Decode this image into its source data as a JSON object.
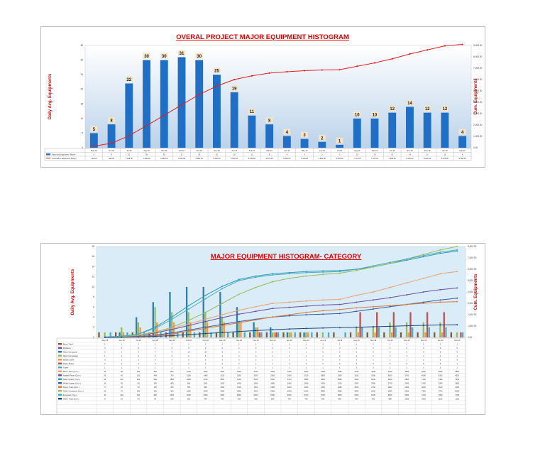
{
  "chart_data": [
    {
      "type": "bar",
      "title": "OVERAL PROJECT MAJOR EQUIPMENT HISTOGRAM",
      "ylabel": "Daily Avg. Equipments",
      "y2label": "Cum. Equipments",
      "ylim": [
        0,
        35
      ],
      "y2lim": [
        0,
        9000
      ],
      "y_ticks": [
        "0",
        "5",
        "10",
        "15",
        "20",
        "25",
        "30",
        "35"
      ],
      "y2_ticks": [
        "0.00",
        "1,000.00",
        "2,000.00",
        "3,000.00",
        "4,000.00",
        "5,000.00",
        "6,000.00",
        "7,000.00",
        "8,000.00",
        "9,000.00"
      ],
      "categories": [
        "May-18",
        "Jun-18",
        "Jul-18",
        "Aug-18",
        "Sep-18",
        "Oct-18",
        "Nov-18",
        "Dec-18",
        "Jan-19",
        "Feb-19",
        "Mar-19",
        "Apr-19",
        "May-19",
        "Jun-19",
        "Jul-19",
        "Aug-19",
        "Sep-19",
        "Oct-19",
        "Nov-19",
        "Dec-19",
        "Jan-20",
        "Feb-20"
      ],
      "series": [
        {
          "name": "Daily Avg Equipment / Month",
          "kind": "bar",
          "color": "#1f6fc6",
          "values": [
            5,
            8,
            22,
            30,
            30,
            31,
            30,
            25,
            19,
            11,
            8,
            4,
            3,
            2,
            1,
            10,
            10,
            12,
            14,
            12,
            12,
            4
          ],
          "labels": [
            "5",
            "8",
            "22",
            "30",
            "30",
            "31",
            "30",
            "25",
            "19",
            "11",
            "8",
            "4",
            "3",
            "2",
            "1",
            "10",
            "10",
            "12",
            "14",
            "12",
            "12",
            "4"
          ]
        },
        {
          "name": "Cumulative Equipment (Days)",
          "kind": "line",
          "color": "#e02020",
          "values": [
            148,
            392,
            1058,
            1950,
            2850,
            3780,
            4680,
            5430,
            6000,
            6330,
            6570,
            6690,
            6780,
            6840,
            6870,
            7170,
            7470,
            7830,
            8250,
            8610,
            8970,
            9090
          ],
          "labels": [
            "148.00",
            "392.00",
            "1,058.00",
            "1,950.00",
            "2,850.00",
            "3,780.00",
            "4,680.00",
            "5,430.00",
            "6,000.00",
            "6,330.00",
            "6,570.00",
            "6,690.00",
            "6,780.00",
            "6,840.00",
            "6,870.00",
            "7,170.00",
            "7,470.00",
            "7,830.00",
            "8,250.00",
            "8,610.00",
            "8,970.00",
            "9,090.00"
          ]
        }
      ],
      "grid": false,
      "legend": "table-below"
    },
    {
      "type": "bar",
      "title": "MAJOR EQUIPMENT HISTOGRAM- CATEGORY",
      "ylabel": "Daily Avg. Equipments",
      "y2label": "Cum. Equipments",
      "ylim": [
        0,
        18
      ],
      "y2lim": [
        0,
        8000
      ],
      "y_ticks": [
        "0",
        "2",
        "4",
        "6",
        "8",
        "10",
        "12",
        "14",
        "16",
        "18"
      ],
      "y2_ticks": [
        "0.00",
        "1,000.00",
        "2,000.00",
        "3,000.00",
        "4,000.00",
        "5,000.00",
        "6,000.00",
        "7,000.00",
        "8,000.00"
      ],
      "categories": [
        "May-18",
        "Jun-18",
        "Jul-18",
        "Aug-18",
        "Sep-18",
        "Oct-18",
        "Nov-18",
        "Dec-18",
        "Jan-19",
        "Feb-19",
        "Mar-19",
        "Apr-19",
        "May-19",
        "Jun-19",
        "Jul-19",
        "Aug-19",
        "Sep-19",
        "Oct-19",
        "Nov-19",
        "Dec-19",
        "Jan-20",
        "Feb-20"
      ],
      "bar_series": [
        {
          "name": "Boom Truck",
          "color": "#7f5a2e",
          "values": [
            1,
            1,
            1,
            1,
            1,
            1,
            1,
            1,
            1,
            1,
            1,
            1,
            1,
            1,
            1,
            1,
            1,
            1,
            1,
            1,
            1,
            1
          ]
        },
        {
          "name": "Bulldozer",
          "color": "#7f3fbf",
          "values": [
            0,
            0,
            0,
            0,
            0,
            0,
            0,
            0,
            0,
            0,
            0,
            0,
            0,
            0,
            0,
            0,
            0,
            0,
            0,
            0,
            0,
            0
          ]
        },
        {
          "name": "Motor Compactor",
          "color": "#2e7fae",
          "values": [
            0,
            1,
            4,
            7,
            9,
            10,
            10,
            9,
            6,
            3,
            2,
            1,
            1,
            0,
            0,
            0,
            0,
            0,
            0,
            0,
            0,
            0
          ]
        },
        {
          "name": "Motor Comparator",
          "color": "#9bbb59",
          "values": [
            1,
            2,
            3,
            6,
            5,
            5,
            5,
            4,
            3,
            2,
            1,
            1,
            1,
            1,
            0,
            2,
            2,
            3,
            3,
            3,
            3,
            1
          ]
        },
        {
          "name": "Mobile Crane",
          "color": "#f79646",
          "values": [
            0,
            1,
            2,
            3,
            3,
            3,
            3,
            3,
            3,
            2,
            1,
            1,
            1,
            0,
            0,
            1,
            1,
            1,
            1,
            1,
            1,
            0
          ]
        },
        {
          "name": "Water Tanker",
          "color": "#c0504d",
          "values": [
            0,
            0,
            0,
            0,
            0,
            0,
            0,
            0,
            0,
            1,
            1,
            0,
            0,
            0,
            0,
            5,
            5,
            5,
            5,
            5,
            5,
            1
          ]
        },
        {
          "name": "Trailer",
          "color": "#4bacc6",
          "values": [
            1,
            1,
            1,
            1,
            1,
            1,
            1,
            1,
            1,
            1,
            1,
            1,
            1,
            1,
            1,
            2,
            2,
            2,
            2,
            2,
            2,
            1
          ]
        }
      ],
      "line_series": [
        {
          "name": "Boom Truck (Cum.)",
          "color": "#f0a070",
          "values": [
            30,
            90,
            200,
            500,
            800,
            1200,
            1600,
            2000,
            2400,
            2700,
            3000,
            3100,
            3200,
            3300,
            3350,
            3700,
            4000,
            4400,
            4800,
            5200,
            5600,
            5800
          ]
        },
        {
          "name": "Asphalt Paver (Cum.)",
          "color": "#6a4fa3",
          "values": [
            20,
            60,
            150,
            400,
            700,
            1050,
            1400,
            1750,
            2050,
            2300,
            2550,
            2650,
            2750,
            2850,
            2900,
            3100,
            3300,
            3500,
            3750,
            4000,
            4200,
            4350
          ]
        },
        {
          "name": "Motor Grader (Cum.)",
          "color": "#2e9fae",
          "values": [
            30,
            100,
            300,
            900,
            1800,
            2800,
            3700,
            4500,
            5100,
            5400,
            5600,
            5700,
            5800,
            5850,
            5880,
            6000,
            6200,
            6500,
            6800,
            7100,
            7400,
            7600
          ]
        },
        {
          "name": "Wheel Loader (Cum.)",
          "color": "#3b5ea8",
          "values": [
            10,
            30,
            80,
            200,
            400,
            650,
            900,
            1150,
            1400,
            1600,
            1800,
            1900,
            2000,
            2050,
            2100,
            2300,
            2500,
            2700,
            2900,
            3100,
            3300,
            3450
          ]
        },
        {
          "name": "Dump Truck (Cum.)",
          "color": "#e07b39",
          "values": [
            5,
            20,
            60,
            150,
            300,
            550,
            800,
            1050,
            1300,
            1550,
            1800,
            2000,
            2200,
            2350,
            2450,
            2600,
            2700,
            2800,
            2900,
            3000,
            3100,
            3150
          ]
        },
        {
          "name": "Roller Compactor (Cum.)",
          "color": "#9bbb59",
          "values": [
            20,
            70,
            180,
            450,
            900,
            1500,
            2200,
            3000,
            3800,
            4400,
            4900,
            5200,
            5400,
            5550,
            5650,
            5900,
            6200,
            6500,
            6900,
            7300,
            7700,
            8000
          ]
        },
        {
          "name": "Excavator (Cum.)",
          "color": "#4bacc6",
          "values": [
            40,
            120,
            300,
            800,
            1600,
            2500,
            3400,
            4300,
            5000,
            5300,
            5500,
            5600,
            5700,
            5750,
            5800,
            6000,
            6300,
            6600,
            6900,
            7200,
            7500,
            7700
          ]
        },
        {
          "name": "Water Truck (Cum.)",
          "color": "#1f497d",
          "values": [
            5,
            15,
            40,
            90,
            160,
            250,
            340,
            430,
            520,
            600,
            680,
            740,
            790,
            830,
            860,
            900,
            940,
            980,
            1020,
            1060,
            1100,
            1120
          ]
        }
      ],
      "table_rows": 19,
      "grid": false,
      "legend": "table-below"
    }
  ]
}
